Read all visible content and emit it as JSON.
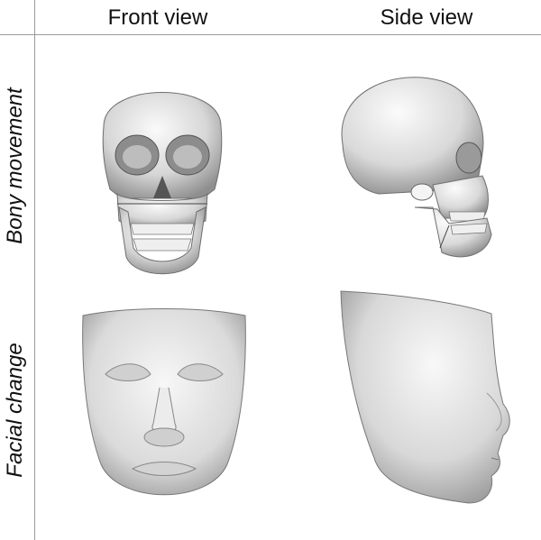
{
  "columns": {
    "front": "Front view",
    "side": "Side view"
  },
  "rows": {
    "bony": "Bony movement",
    "facial": "Facial change"
  },
  "colors": {
    "grid_line": "#9a9a9a",
    "render_fill": "#e2e2e2",
    "render_shadow": "#8a8a8a"
  }
}
